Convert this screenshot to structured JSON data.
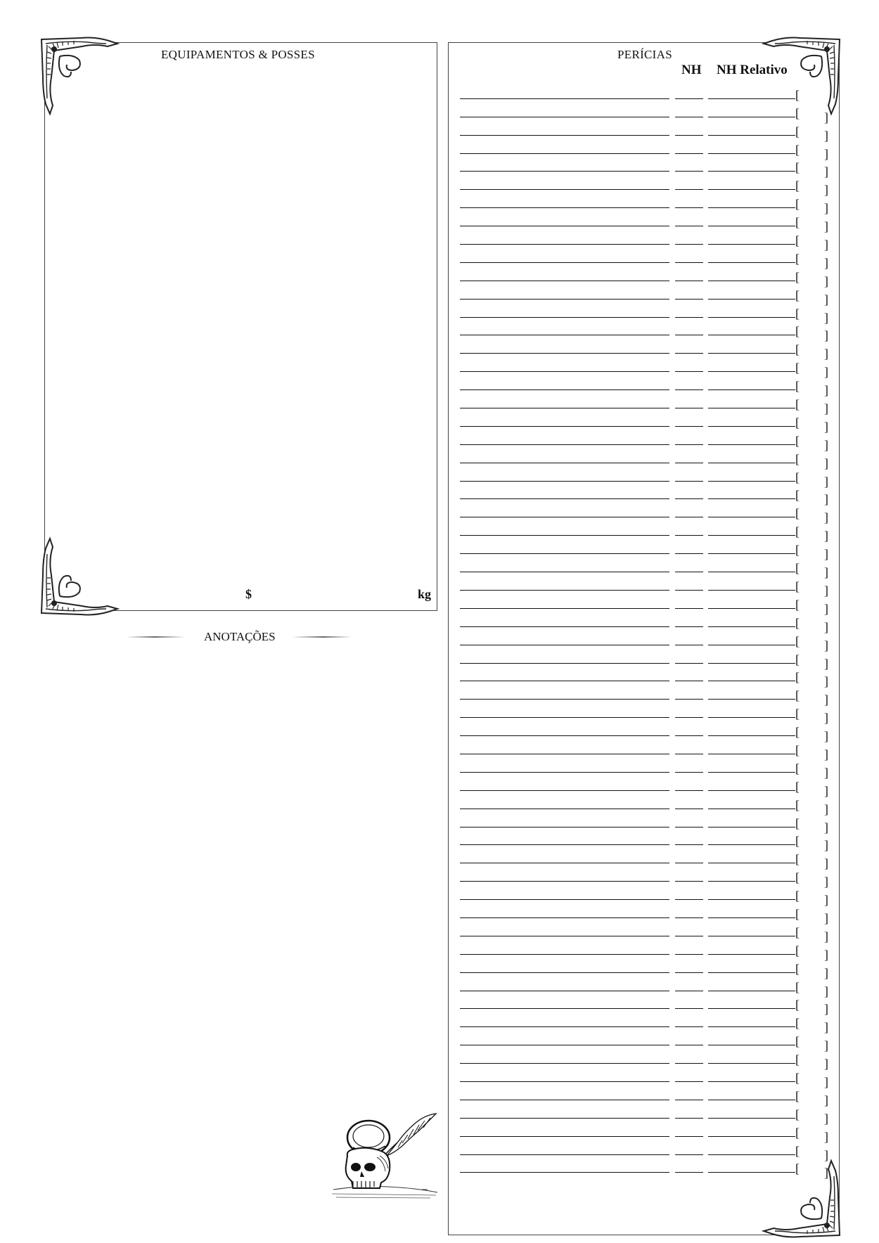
{
  "equipment": {
    "title": "EQUIPAMENTOS & POSSES",
    "money_symbol": "$",
    "weight_unit": "kg"
  },
  "notes": {
    "title": "ANOTAÇÕES"
  },
  "skills": {
    "title": "PERÍCIAS",
    "col_nh": "NH",
    "col_relative": "NH Relativo",
    "row_count": 60,
    "open_bracket": "[",
    "close_bracket": "]"
  },
  "decorations": {
    "corner_ornament": "scroll-ornament-icon",
    "bottom_illustration": "skull-with-quill-icon"
  }
}
